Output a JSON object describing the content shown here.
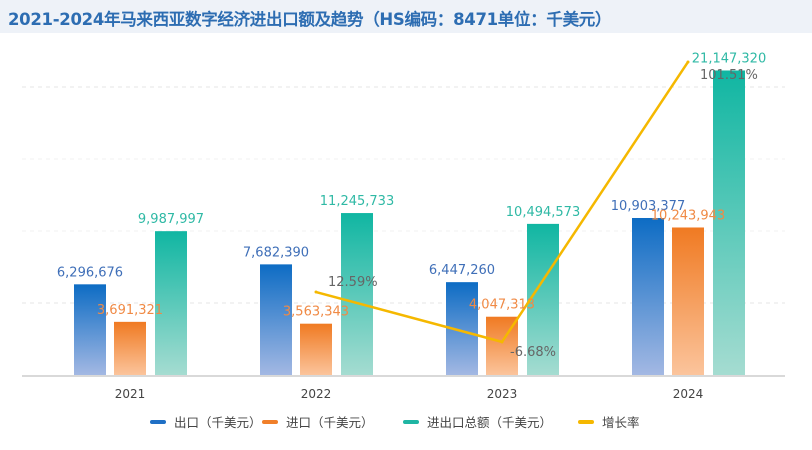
{
  "title": "2021-2024年马来西亚数字经济进出口额及趋势（HS编码：8471单位：千美元）",
  "colors": {
    "export": "#1f6fc5",
    "import": "#f07f2a",
    "total": "#1fb5a3",
    "growth": "#f5b800"
  },
  "chart_data": {
    "type": "bar+line",
    "categories": [
      "2021",
      "2022",
      "2023",
      "2024"
    ],
    "series": [
      {
        "name": "出口（千美元）",
        "type": "bar",
        "values": [
          6296676,
          7682390,
          6447260,
          10903377
        ],
        "labels": [
          "6,296,676",
          "7,682,390",
          "6,447,260",
          "10,903,377"
        ]
      },
      {
        "name": "进口（千美元）",
        "type": "bar",
        "values": [
          3691321,
          3563343,
          4047313,
          10243943
        ],
        "labels": [
          "3,691,321",
          "3,563,343",
          "4,047,313",
          "10,243,943"
        ]
      },
      {
        "name": "进出口总额（千美元）",
        "type": "bar",
        "values": [
          9987997,
          11245733,
          10494573,
          21147320
        ],
        "labels": [
          "9,987,997",
          "11,245,733",
          "10,494,573",
          "21,147,320"
        ]
      },
      {
        "name": "增长率",
        "type": "line",
        "values": [
          null,
          12.59,
          -6.68,
          101.51
        ],
        "labels": [
          "",
          "12.59%",
          "-6.68%",
          "101.51%"
        ]
      }
    ],
    "ylim": [
      0,
      21147320
    ],
    "grid": true,
    "legend": "bottom"
  }
}
